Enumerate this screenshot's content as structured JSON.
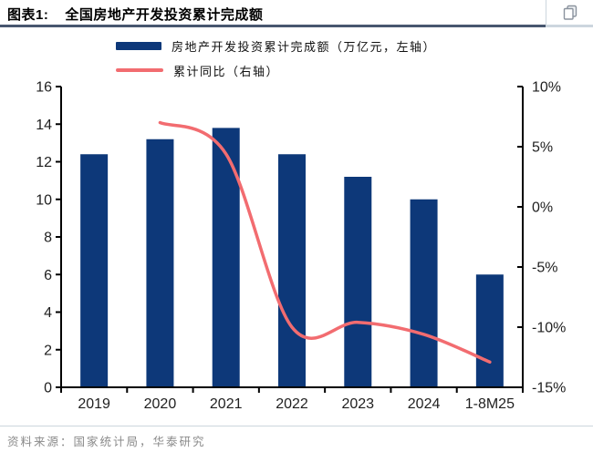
{
  "header": {
    "figure_label": "图表1:",
    "title": "全国房地产开发投资累计完成额",
    "icon": "copy-icon"
  },
  "legend": {
    "items": [
      {
        "label": "房地产开发投资累计完成额（万亿元，左轴）",
        "swatch": "bar",
        "color": "#0d3879"
      },
      {
        "label": "累计同比（右轴）",
        "swatch": "line",
        "color": "#f26c70"
      }
    ]
  },
  "chart_data": {
    "type": "bar",
    "combo": "bar+line",
    "title": "全国房地产开发投资累计完成额",
    "categories": [
      "2019",
      "2020",
      "2021",
      "2022",
      "2023",
      "2024",
      "1-8M25"
    ],
    "series": [
      {
        "name": "房地产开发投资累计完成额（万亿元，左轴）",
        "type": "bar",
        "axis": "left",
        "unit": "万亿元",
        "color": "#0d3879",
        "values": [
          12.4,
          13.2,
          13.8,
          12.4,
          11.2,
          10.0,
          6.0
        ]
      },
      {
        "name": "累计同比（右轴）",
        "type": "line",
        "axis": "right",
        "unit": "%",
        "color": "#f26c70",
        "values": [
          null,
          7.0,
          4.4,
          -10.0,
          -9.6,
          -10.6,
          -12.9
        ]
      }
    ],
    "left_axis": {
      "min": 0,
      "max": 16,
      "tick_step": 2,
      "tick_labels": [
        "0",
        "2",
        "4",
        "6",
        "8",
        "10",
        "12",
        "14",
        "16"
      ]
    },
    "right_axis": {
      "min": -15,
      "max": 10,
      "tick_step": 5,
      "tick_labels": [
        "-15%",
        "-10%",
        "-5%",
        "0%",
        "5%",
        "10%"
      ]
    },
    "grid": false,
    "legend_position": "top",
    "line_smoothing": true
  },
  "footer": {
    "source": "资料来源：国家统计局，华泰研究"
  },
  "colors": {
    "bar": "#0d3879",
    "line": "#f26c70",
    "axis": "#000000",
    "header_rule": "#47566f",
    "divider": "#ccd6dd",
    "icon": "#8b939e"
  }
}
